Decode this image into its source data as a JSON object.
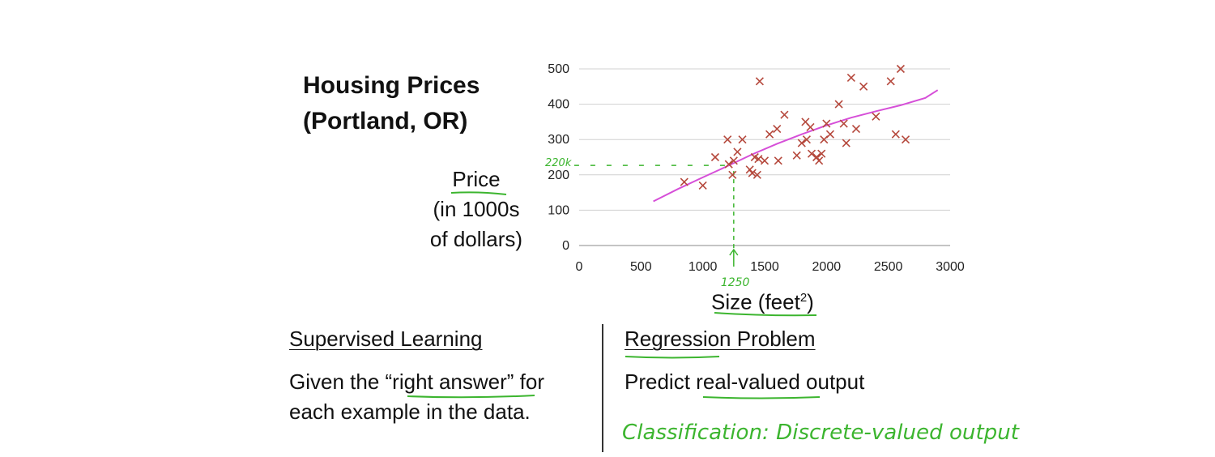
{
  "slide": {
    "title_line1": "Housing Prices",
    "title_line2": "(Portland, OR)",
    "ylabel_line1": "Price",
    "ylabel_line2": "(in 1000s",
    "ylabel_line3": "of dollars)",
    "xlabel_text": "Size (feet",
    "xlabel_sup": "2",
    "xlabel_close": ")",
    "left": {
      "heading": "Supervised Learning",
      "line1_pre": "Given the “",
      "line1_em": "right answer",
      "line1_post": "” for",
      "line2": "each example in the data."
    },
    "right": {
      "heading": "Regression Problem",
      "line1_pre": "Predict ",
      "line1_em": "real-valued",
      "line1_post": " output",
      "handwritten": "Classification: Discrete-valued output"
    }
  },
  "chart_data": {
    "type": "scatter",
    "title": "Housing Prices (Portland, OR)",
    "xlabel": "Size (feet2)",
    "ylabel": "Price (in 1000s of dollars)",
    "xlim": [
      0,
      3000
    ],
    "ylim": [
      0,
      500
    ],
    "xticks": [
      0,
      500,
      1000,
      1500,
      2000,
      2500,
      3000
    ],
    "yticks": [
      0,
      100,
      200,
      300,
      400,
      500
    ],
    "grid": true,
    "marker": "x",
    "marker_color": "#b5483c",
    "fit_color": "#d64fd8",
    "annotation_color": "#3cb52f",
    "points": [
      [
        850,
        180
      ],
      [
        1000,
        170
      ],
      [
        1100,
        250
      ],
      [
        1200,
        300
      ],
      [
        1210,
        230
      ],
      [
        1240,
        200
      ],
      [
        1250,
        240
      ],
      [
        1280,
        265
      ],
      [
        1320,
        300
      ],
      [
        1380,
        215
      ],
      [
        1400,
        205
      ],
      [
        1420,
        250
      ],
      [
        1440,
        200
      ],
      [
        1450,
        245
      ],
      [
        1460,
        465
      ],
      [
        1500,
        240
      ],
      [
        1540,
        315
      ],
      [
        1600,
        330
      ],
      [
        1610,
        240
      ],
      [
        1660,
        370
      ],
      [
        1760,
        255
      ],
      [
        1800,
        290
      ],
      [
        1830,
        350
      ],
      [
        1840,
        300
      ],
      [
        1870,
        335
      ],
      [
        1880,
        260
      ],
      [
        1920,
        250
      ],
      [
        1940,
        240
      ],
      [
        1960,
        260
      ],
      [
        1980,
        300
      ],
      [
        2000,
        345
      ],
      [
        2030,
        315
      ],
      [
        2100,
        400
      ],
      [
        2140,
        345
      ],
      [
        2160,
        290
      ],
      [
        2200,
        475
      ],
      [
        2240,
        330
      ],
      [
        2300,
        450
      ],
      [
        2400,
        365
      ],
      [
        2520,
        465
      ],
      [
        2560,
        315
      ],
      [
        2600,
        500
      ],
      [
        2640,
        300
      ]
    ],
    "fit_line": [
      [
        600,
        125
      ],
      [
        800,
        160
      ],
      [
        1000,
        193
      ],
      [
        1200,
        225
      ],
      [
        1400,
        258
      ],
      [
        1600,
        288
      ],
      [
        1800,
        315
      ],
      [
        2000,
        340
      ],
      [
        2200,
        362
      ],
      [
        2400,
        380
      ],
      [
        2600,
        397
      ],
      [
        2800,
        418
      ],
      [
        2900,
        440
      ]
    ],
    "annotations": {
      "x_value": "1250",
      "y_value": "220k",
      "x": 1250,
      "y": 220
    }
  }
}
